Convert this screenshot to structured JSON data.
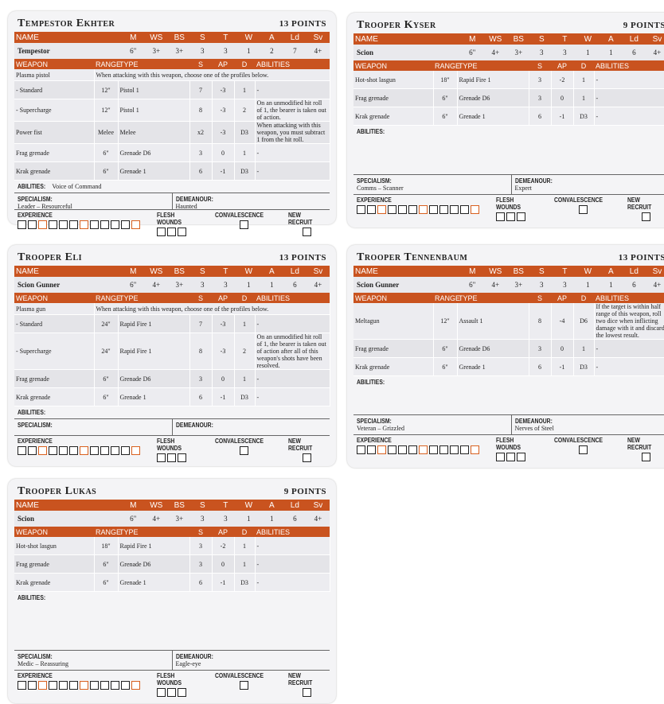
{
  "labels": {
    "stat_headers": [
      "NAME",
      "M",
      "WS",
      "BS",
      "S",
      "T",
      "W",
      "A",
      "Ld",
      "Sv"
    ],
    "weapon_headers": [
      "WEAPON",
      "RANGE",
      "TYPE",
      "S",
      "AP",
      "D",
      "ABILITIES"
    ],
    "abilities": "ABILITIES:",
    "specialism": "SPECIALISM:",
    "demeanour": "DEMEANOUR:",
    "experience": "EXPERIENCE",
    "flesh_wounds": "FLESH WOUNDS",
    "convalescence": "CONVALESCENCE",
    "new_recruit": "NEW RECRUIT"
  },
  "cards": [
    {
      "name": "Tempestor Ekhter",
      "points": "13 POINTS",
      "profile": [
        "Tempestor",
        "6\"",
        "3+",
        "3+",
        "3",
        "3",
        "1",
        "2",
        "7",
        "4+"
      ],
      "weapons": [
        [
          "Plasma pistol",
          "When attacking with this weapon, choose one of the profiles below."
        ],
        [
          "- Standard",
          "12\"",
          "Pistol 1",
          "7",
          "-3",
          "1",
          "-"
        ],
        [
          "- Supercharge",
          "12\"",
          "Pistol 1",
          "8",
          "-3",
          "2",
          "On an unmodified hit roll of 1, the bearer is taken out of action."
        ],
        [
          "Power fist",
          "Melee",
          "Melee",
          "x2",
          "-3",
          "D3",
          "When attacking with this weapon, you must subtract 1 from the hit roll."
        ],
        [
          "Frag grenade",
          "6\"",
          "Grenade D6",
          "3",
          "0",
          "1",
          "-"
        ],
        [
          "Krak grenade",
          "6\"",
          "Grenade 1",
          "6",
          "-1",
          "D3",
          "-"
        ]
      ],
      "abilities": "Voice of Command",
      "specialism": "Leader – Resourceful",
      "demeanour": "Haunted"
    },
    {
      "name": "Trooper Kyser",
      "points": "9 POINTS",
      "profile": [
        "Scion",
        "6\"",
        "4+",
        "3+",
        "3",
        "3",
        "1",
        "1",
        "6",
        "4+"
      ],
      "weapons": [
        [
          "Hot-shot lasgun",
          "18\"",
          "Rapid Fire 1",
          "3",
          "-2",
          "1",
          "-"
        ],
        [
          "Frag grenade",
          "6\"",
          "Grenade D6",
          "3",
          "0",
          "1",
          "-"
        ],
        [
          "Krak grenade",
          "6\"",
          "Grenade 1",
          "6",
          "-1",
          "D3",
          "-"
        ]
      ],
      "specialism": "Comms – Scanner",
      "demeanour": "Expert"
    },
    {
      "name": "Trooper Eli",
      "points": "13 POINTS",
      "profile": [
        "Scion Gunner",
        "6\"",
        "4+",
        "3+",
        "3",
        "3",
        "1",
        "1",
        "6",
        "4+"
      ],
      "weapons": [
        [
          "Plasma gun",
          "When attacking with this weapon, choose one of the profiles below."
        ],
        [
          "- Standard",
          "24\"",
          "Rapid Fire 1",
          "7",
          "-3",
          "1",
          "-"
        ],
        [
          "- Supercharge",
          "24\"",
          "Rapid Fire 1",
          "8",
          "-3",
          "2",
          "On an unmodified hit roll of 1, the bearer is taken out of action after all of this weapon's shots have been resolved."
        ],
        [
          "Frag grenade",
          "6\"",
          "Grenade D6",
          "3",
          "0",
          "1",
          "-"
        ],
        [
          "Krak grenade",
          "6\"",
          "Grenade 1",
          "6",
          "-1",
          "D3",
          "-"
        ]
      ]
    },
    {
      "name": "Trooper Tennenbaum",
      "points": "13 POINTS",
      "profile": [
        "Scion Gunner",
        "6\"",
        "4+",
        "3+",
        "3",
        "3",
        "1",
        "1",
        "6",
        "4+"
      ],
      "weapons": [
        [
          "Meltagun",
          "12\"",
          "Assault 1",
          "8",
          "-4",
          "D6",
          "If the target is within half range of this weapon, roll two dice when inflicting damage with it and discard the lowest result."
        ],
        [
          "Frag grenade",
          "6\"",
          "Grenade D6",
          "3",
          "0",
          "1",
          "-"
        ],
        [
          "Krak grenade",
          "6\"",
          "Grenade 1",
          "6",
          "-1",
          "D3",
          "-"
        ]
      ],
      "specialism": "Veteran – Grizzled",
      "demeanour": "Nerves of Steel"
    },
    {
      "name": "Trooper Lukas",
      "points": "9 POINTS",
      "profile": [
        "Scion",
        "6\"",
        "4+",
        "3+",
        "3",
        "3",
        "1",
        "1",
        "6",
        "4+"
      ],
      "weapons": [
        [
          "Hot-shot lasgun",
          "18\"",
          "Rapid Fire 1",
          "3",
          "-2",
          "1",
          "-"
        ],
        [
          "Frag grenade",
          "6\"",
          "Grenade D6",
          "3",
          "0",
          "1",
          "-"
        ],
        [
          "Krak grenade",
          "6\"",
          "Grenade 1",
          "6",
          "-1",
          "D3",
          "-"
        ]
      ],
      "specialism": "Medic – Reassuring",
      "demeanour": "Eagle-eye"
    }
  ]
}
